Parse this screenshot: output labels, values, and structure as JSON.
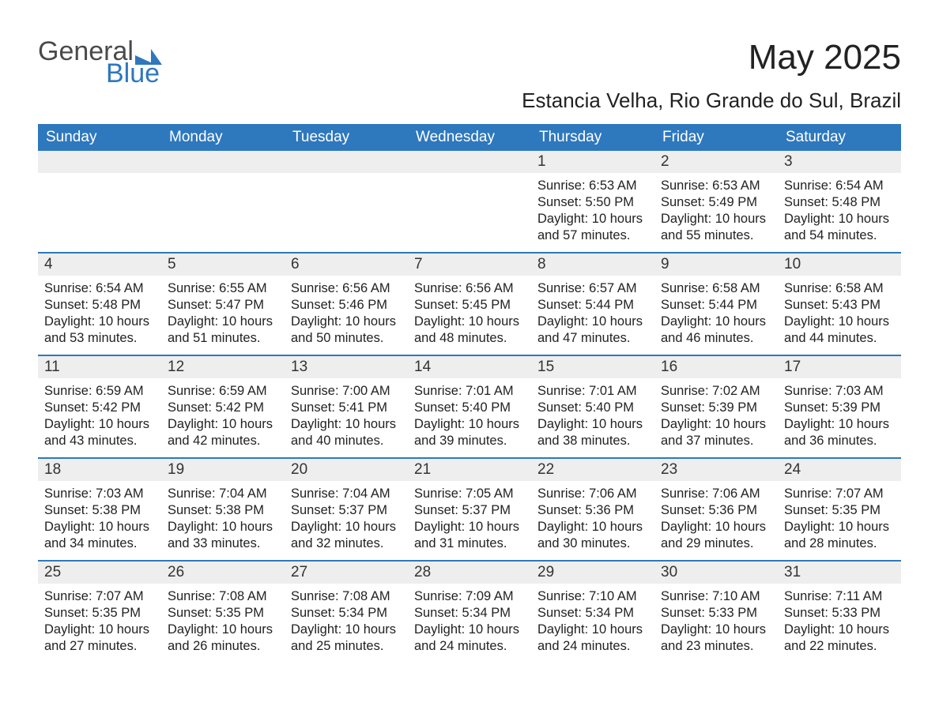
{
  "brand": {
    "word1": "General",
    "word2": "Blue",
    "color_gray": "#4a4a4a",
    "color_blue": "#2e78bd",
    "mark_color": "#2e78bd"
  },
  "title": "May 2025",
  "location": "Estancia Velha, Rio Grande do Sul, Brazil",
  "colors": {
    "header_bg": "#2e78bd",
    "header_text": "#ffffff",
    "daynum_bg": "#eeeeee",
    "page_bg": "#ffffff",
    "text": "#222222",
    "row_divider": "#2e78bd"
  },
  "weekdays": [
    "Sunday",
    "Monday",
    "Tuesday",
    "Wednesday",
    "Thursday",
    "Friday",
    "Saturday"
  ],
  "first_weekday_index": 4,
  "days": [
    {
      "n": 1,
      "sunrise": "6:53 AM",
      "sunset": "5:50 PM",
      "daylight": "10 hours and 57 minutes."
    },
    {
      "n": 2,
      "sunrise": "6:53 AM",
      "sunset": "5:49 PM",
      "daylight": "10 hours and 55 minutes."
    },
    {
      "n": 3,
      "sunrise": "6:54 AM",
      "sunset": "5:48 PM",
      "daylight": "10 hours and 54 minutes."
    },
    {
      "n": 4,
      "sunrise": "6:54 AM",
      "sunset": "5:48 PM",
      "daylight": "10 hours and 53 minutes."
    },
    {
      "n": 5,
      "sunrise": "6:55 AM",
      "sunset": "5:47 PM",
      "daylight": "10 hours and 51 minutes."
    },
    {
      "n": 6,
      "sunrise": "6:56 AM",
      "sunset": "5:46 PM",
      "daylight": "10 hours and 50 minutes."
    },
    {
      "n": 7,
      "sunrise": "6:56 AM",
      "sunset": "5:45 PM",
      "daylight": "10 hours and 48 minutes."
    },
    {
      "n": 8,
      "sunrise": "6:57 AM",
      "sunset": "5:44 PM",
      "daylight": "10 hours and 47 minutes."
    },
    {
      "n": 9,
      "sunrise": "6:58 AM",
      "sunset": "5:44 PM",
      "daylight": "10 hours and 46 minutes."
    },
    {
      "n": 10,
      "sunrise": "6:58 AM",
      "sunset": "5:43 PM",
      "daylight": "10 hours and 44 minutes."
    },
    {
      "n": 11,
      "sunrise": "6:59 AM",
      "sunset": "5:42 PM",
      "daylight": "10 hours and 43 minutes."
    },
    {
      "n": 12,
      "sunrise": "6:59 AM",
      "sunset": "5:42 PM",
      "daylight": "10 hours and 42 minutes."
    },
    {
      "n": 13,
      "sunrise": "7:00 AM",
      "sunset": "5:41 PM",
      "daylight": "10 hours and 40 minutes."
    },
    {
      "n": 14,
      "sunrise": "7:01 AM",
      "sunset": "5:40 PM",
      "daylight": "10 hours and 39 minutes."
    },
    {
      "n": 15,
      "sunrise": "7:01 AM",
      "sunset": "5:40 PM",
      "daylight": "10 hours and 38 minutes."
    },
    {
      "n": 16,
      "sunrise": "7:02 AM",
      "sunset": "5:39 PM",
      "daylight": "10 hours and 37 minutes."
    },
    {
      "n": 17,
      "sunrise": "7:03 AM",
      "sunset": "5:39 PM",
      "daylight": "10 hours and 36 minutes."
    },
    {
      "n": 18,
      "sunrise": "7:03 AM",
      "sunset": "5:38 PM",
      "daylight": "10 hours and 34 minutes."
    },
    {
      "n": 19,
      "sunrise": "7:04 AM",
      "sunset": "5:38 PM",
      "daylight": "10 hours and 33 minutes."
    },
    {
      "n": 20,
      "sunrise": "7:04 AM",
      "sunset": "5:37 PM",
      "daylight": "10 hours and 32 minutes."
    },
    {
      "n": 21,
      "sunrise": "7:05 AM",
      "sunset": "5:37 PM",
      "daylight": "10 hours and 31 minutes."
    },
    {
      "n": 22,
      "sunrise": "7:06 AM",
      "sunset": "5:36 PM",
      "daylight": "10 hours and 30 minutes."
    },
    {
      "n": 23,
      "sunrise": "7:06 AM",
      "sunset": "5:36 PM",
      "daylight": "10 hours and 29 minutes."
    },
    {
      "n": 24,
      "sunrise": "7:07 AM",
      "sunset": "5:35 PM",
      "daylight": "10 hours and 28 minutes."
    },
    {
      "n": 25,
      "sunrise": "7:07 AM",
      "sunset": "5:35 PM",
      "daylight": "10 hours and 27 minutes."
    },
    {
      "n": 26,
      "sunrise": "7:08 AM",
      "sunset": "5:35 PM",
      "daylight": "10 hours and 26 minutes."
    },
    {
      "n": 27,
      "sunrise": "7:08 AM",
      "sunset": "5:34 PM",
      "daylight": "10 hours and 25 minutes."
    },
    {
      "n": 28,
      "sunrise": "7:09 AM",
      "sunset": "5:34 PM",
      "daylight": "10 hours and 24 minutes."
    },
    {
      "n": 29,
      "sunrise": "7:10 AM",
      "sunset": "5:34 PM",
      "daylight": "10 hours and 24 minutes."
    },
    {
      "n": 30,
      "sunrise": "7:10 AM",
      "sunset": "5:33 PM",
      "daylight": "10 hours and 23 minutes."
    },
    {
      "n": 31,
      "sunrise": "7:11 AM",
      "sunset": "5:33 PM",
      "daylight": "10 hours and 22 minutes."
    }
  ],
  "labels": {
    "sunrise_prefix": "Sunrise: ",
    "sunset_prefix": "Sunset: ",
    "daylight_prefix": "Daylight: "
  }
}
